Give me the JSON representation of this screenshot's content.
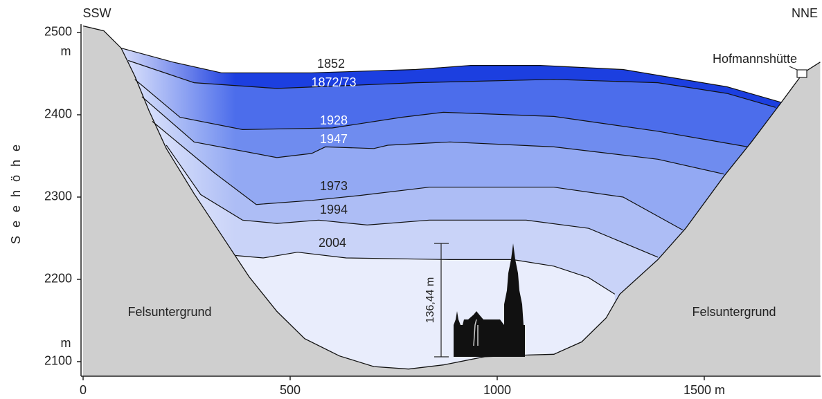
{
  "chart_data": {
    "type": "line",
    "y_label": "Seehöhe",
    "xlim": [
      0,
      1780
    ],
    "ylim": [
      2082,
      2510
    ],
    "xticks": [
      0,
      500,
      1000,
      {
        "value": 1500,
        "label": "1500 m"
      }
    ],
    "yticks": [
      2100,
      2200,
      2300,
      2400,
      2500
    ],
    "y_unit": "m",
    "annotations": {
      "left_end": "SSW",
      "right_end": "NNE",
      "hut": "Hofmannshütte",
      "rock": "Felsuntergrund",
      "height": "136,44 m"
    },
    "bedrock": {
      "color": "#cfcfcf",
      "x": [
        0,
        50,
        92,
        125,
        159,
        201,
        268,
        334,
        401,
        468,
        535,
        619,
        702,
        786,
        870,
        970,
        1070,
        1137,
        1204,
        1263,
        1296,
        1388,
        1455,
        1547,
        1614,
        1686,
        1739,
        1780
      ],
      "values": [
        2508,
        2502,
        2481,
        2447,
        2405,
        2359,
        2304,
        2254,
        2203,
        2161,
        2128,
        2107,
        2094,
        2091,
        2096,
        2106,
        2108,
        2109,
        2124,
        2153,
        2182,
        2224,
        2262,
        2325,
        2367,
        2415,
        2451,
        2464
      ]
    },
    "series": [
      {
        "name": "1852",
        "color": "#1c3fe0",
        "x": [
          92,
          217,
          334,
          552,
          803,
          936,
          1104,
          1304,
          1555,
          1686
        ],
        "values": [
          2481,
          2464,
          2451,
          2451,
          2455,
          2460,
          2460,
          2455,
          2434,
          2415
        ]
      },
      {
        "name": "1872/73",
        "color": "#4c6deb",
        "x": [
          109,
          268,
          468,
          803,
          1137,
          1388,
          1555,
          1672
        ],
        "values": [
          2466,
          2439,
          2432,
          2439,
          2443,
          2439,
          2426,
          2409
        ]
      },
      {
        "name": "1928",
        "color": "#6f8cef",
        "x": [
          125,
          234,
          385,
          602,
          769,
          870,
          1137,
          1388,
          1605
        ],
        "values": [
          2443,
          2397,
          2382,
          2384,
          2397,
          2403,
          2398,
          2380,
          2361
        ]
      },
      {
        "name": "1947",
        "color": "#93a9f3",
        "x": [
          142,
          268,
          468,
          552,
          585,
          702,
          736,
          886,
          1137,
          1388,
          1547
        ],
        "values": [
          2422,
          2367,
          2348,
          2353,
          2361,
          2359,
          2363,
          2367,
          2361,
          2346,
          2328
        ]
      },
      {
        "name": "1973",
        "color": "#adbdf5",
        "x": [
          167,
          318,
          418,
          552,
          669,
          836,
          1137,
          1304,
          1448
        ],
        "values": [
          2392,
          2329,
          2291,
          2296,
          2302,
          2312,
          2312,
          2300,
          2260
        ]
      },
      {
        "name": "1994",
        "color": "#c9d3f8",
        "x": [
          201,
          284,
          385,
          468,
          569,
          686,
          836,
          1070,
          1221,
          1388
        ],
        "values": [
          2363,
          2303,
          2272,
          2268,
          2272,
          2266,
          2272,
          2272,
          2262,
          2227
        ]
      },
      {
        "name": "2004",
        "color": "#e9edfc",
        "x": [
          368,
          435,
          518,
          635,
          886,
          1037,
          1137,
          1221,
          1284
        ],
        "values": [
          2229,
          2226,
          2233,
          2226,
          2224,
          2224,
          2216,
          2202,
          2182
        ]
      }
    ]
  }
}
